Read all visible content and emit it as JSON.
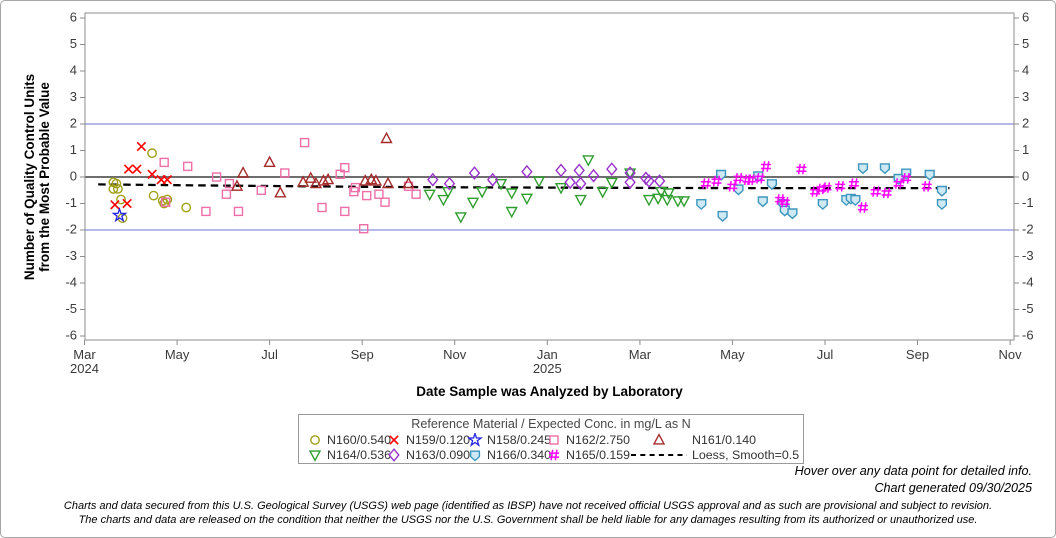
{
  "page": {
    "hover_note": "Hover over any data point for detailed info.",
    "generated_note": "Chart generated 09/30/2025",
    "disclaimer_line1": "Charts and data secured from this U.S. Geological Survey (USGS) web page (identified as IBSP) have not received official USGS approval and as such are provisional and subject to revision.",
    "disclaimer_line2": "The charts and data are released on the condition that neither the USGS nor the U.S. Government shall be held liable for any damages resulting from its authorized or unauthorized use."
  },
  "chart_data": {
    "type": "scatter",
    "xlabel": "Date Sample was Analyzed by Laboratory",
    "ylabel_line1": "Number of Quality Control Units",
    "ylabel_line2": "from the Most Probable Value",
    "legend_title": "Reference Material / Expected Conc. in mg/L as N",
    "ylim": [
      -6,
      6
    ],
    "yticks": [
      6,
      5,
      4,
      3,
      2,
      1,
      0,
      -1,
      -2,
      -3,
      -4,
      -5,
      -6
    ],
    "xticks": [
      {
        "label": "Mar",
        "year": "2024"
      },
      {
        "label": "May"
      },
      {
        "label": "Jul"
      },
      {
        "label": "Sep"
      },
      {
        "label": "Nov"
      },
      {
        "label": "Jan",
        "year": "2025"
      },
      {
        "label": "Mar"
      },
      {
        "label": "May"
      },
      {
        "label": "Jul"
      },
      {
        "label": "Sep"
      },
      {
        "label": "Nov"
      }
    ],
    "x_range_months": [
      "2024-03",
      "2025-11"
    ],
    "grid": false,
    "legend_position": "bottom",
    "reference_lines": [
      {
        "value": 2,
        "color": "#8a8edb",
        "width": 1.2
      },
      {
        "value": 0,
        "color": "#6e6e6e",
        "width": 2
      },
      {
        "value": -2,
        "color": "#8a8edb",
        "width": 1.2
      }
    ],
    "series": [
      {
        "id": "N160",
        "label": "N160/0.540",
        "marker": "circle",
        "color": "#a0a018",
        "points": [
          [
            "2024-04-15",
            0.9
          ],
          [
            "2024-03-20",
            -0.2
          ],
          [
            "2024-03-22",
            -0.25
          ],
          [
            "2024-03-20",
            -0.45
          ],
          [
            "2024-03-23",
            -0.45
          ],
          [
            "2024-03-25",
            -0.85
          ],
          [
            "2024-04-16",
            -0.7
          ],
          [
            "2024-04-22",
            -0.9
          ],
          [
            "2024-04-25",
            -0.85
          ],
          [
            "2024-04-23",
            -1.0
          ],
          [
            "2024-05-07",
            -1.15
          ],
          [
            "2024-03-26",
            -1.55
          ]
        ]
      },
      {
        "id": "N159",
        "label": "N159/0.120",
        "marker": "x",
        "color": "#ff0000",
        "points": [
          [
            "2024-04-08",
            1.15
          ],
          [
            "2024-03-30",
            0.3
          ],
          [
            "2024-04-05",
            0.3
          ],
          [
            "2024-04-15",
            0.1
          ],
          [
            "2024-04-21",
            -0.1
          ],
          [
            "2024-04-25",
            -0.1
          ],
          [
            "2024-03-21",
            -1.05
          ],
          [
            "2024-03-29",
            -1.0
          ]
        ]
      },
      {
        "id": "N158",
        "label": "N158/0.245",
        "marker": "star",
        "color": "#2323e8",
        "points": [
          [
            "2024-03-24",
            -1.45
          ]
        ]
      },
      {
        "id": "N162",
        "label": "N162/2.750",
        "marker": "square",
        "color": "#ee6ea8",
        "points": [
          [
            "2024-04-23",
            0.55
          ],
          [
            "2024-05-08",
            0.4
          ],
          [
            "2024-04-24",
            -0.95
          ],
          [
            "2024-05-20",
            -1.3
          ],
          [
            "2024-05-27",
            0.0
          ],
          [
            "2024-06-05",
            -0.25
          ],
          [
            "2024-06-03",
            -0.65
          ],
          [
            "2024-06-11",
            -1.3
          ],
          [
            "2024-06-26",
            -0.5
          ],
          [
            "2024-07-11",
            0.15
          ],
          [
            "2024-07-24",
            1.3
          ],
          [
            "2024-08-17",
            0.1
          ],
          [
            "2024-08-20",
            0.35
          ],
          [
            "2024-08-05",
            -1.15
          ],
          [
            "2024-08-20",
            -1.3
          ],
          [
            "2024-08-26",
            -0.55
          ],
          [
            "2024-08-27",
            -0.4
          ],
          [
            "2024-09-04",
            -0.7
          ],
          [
            "2024-09-12",
            -0.65
          ],
          [
            "2024-09-16",
            -0.95
          ],
          [
            "2024-09-02",
            -1.95
          ],
          [
            "2024-10-01",
            -0.35
          ],
          [
            "2024-10-06",
            -0.65
          ]
        ]
      },
      {
        "id": "N161",
        "label": "N161/0.140",
        "marker": "triangle-up",
        "color": "#a52a2a",
        "points": [
          [
            "2024-06-10",
            -0.35
          ],
          [
            "2024-06-14",
            0.15
          ],
          [
            "2024-07-01",
            0.55
          ],
          [
            "2024-07-08",
            -0.6
          ],
          [
            "2024-07-23",
            -0.2
          ],
          [
            "2024-07-28",
            -0.05
          ],
          [
            "2024-08-01",
            -0.25
          ],
          [
            "2024-08-06",
            -0.15
          ],
          [
            "2024-08-09",
            -0.1
          ],
          [
            "2024-09-03",
            -0.15
          ],
          [
            "2024-09-07",
            -0.1
          ],
          [
            "2024-09-10",
            -0.15
          ],
          [
            "2024-09-17",
            1.45
          ],
          [
            "2024-09-18",
            -0.25
          ],
          [
            "2024-10-01",
            -0.25
          ]
        ]
      },
      {
        "id": "N164",
        "label": "N164/0.536",
        "marker": "triangle-down",
        "color": "#2f9e2f",
        "points": [
          [
            "2024-10-15",
            -0.65
          ],
          [
            "2024-10-24",
            -0.85
          ],
          [
            "2024-10-27",
            -0.55
          ],
          [
            "2024-11-05",
            -1.5
          ],
          [
            "2024-11-13",
            -0.95
          ],
          [
            "2024-11-19",
            -0.55
          ],
          [
            "2024-12-01",
            -0.25
          ],
          [
            "2024-12-08",
            -0.6
          ],
          [
            "2024-12-08",
            -1.3
          ],
          [
            "2024-12-18",
            -0.8
          ],
          [
            "2024-12-26",
            -0.15
          ],
          [
            "2025-01-10",
            -0.4
          ],
          [
            "2025-01-23",
            -0.85
          ],
          [
            "2025-01-28",
            0.65
          ],
          [
            "2025-02-07",
            -0.55
          ],
          [
            "2025-02-13",
            -0.2
          ],
          [
            "2025-02-25",
            0.15
          ],
          [
            "2025-03-07",
            -0.85
          ],
          [
            "2025-03-13",
            -0.8
          ],
          [
            "2025-03-15",
            -0.55
          ],
          [
            "2025-03-19",
            -0.85
          ],
          [
            "2025-03-20",
            -0.6
          ],
          [
            "2025-03-26",
            -0.9
          ],
          [
            "2025-03-30",
            -0.9
          ]
        ]
      },
      {
        "id": "N163",
        "label": "N163/0.090",
        "marker": "diamond",
        "color": "#9932cc",
        "points": [
          [
            "2024-10-17",
            -0.1
          ],
          [
            "2024-10-28",
            -0.25
          ],
          [
            "2024-11-14",
            0.15
          ],
          [
            "2024-11-26",
            -0.1
          ],
          [
            "2024-12-18",
            0.2
          ],
          [
            "2025-01-10",
            0.25
          ],
          [
            "2025-01-16",
            -0.2
          ],
          [
            "2025-01-22",
            0.25
          ],
          [
            "2025-01-23",
            -0.25
          ],
          [
            "2025-02-01",
            0.05
          ],
          [
            "2025-02-13",
            0.3
          ],
          [
            "2025-02-25",
            0.15
          ],
          [
            "2025-02-25",
            -0.2
          ],
          [
            "2025-03-05",
            -0.05
          ],
          [
            "2025-03-07",
            -0.15
          ],
          [
            "2025-03-14",
            -0.15
          ]
        ]
      },
      {
        "id": "N166",
        "label": "N166/0.340",
        "marker": "shield",
        "color": "#3c96be",
        "fill": "#cfe9f4",
        "points": [
          [
            "2025-04-11",
            -1.0
          ],
          [
            "2025-04-24",
            0.1
          ],
          [
            "2025-04-25",
            -1.45
          ],
          [
            "2025-05-05",
            -0.45
          ],
          [
            "2025-05-18",
            0.05
          ],
          [
            "2025-05-21",
            -0.9
          ],
          [
            "2025-05-27",
            -0.25
          ],
          [
            "2025-06-04",
            -1.0
          ],
          [
            "2025-06-05",
            -1.25
          ],
          [
            "2025-06-10",
            -1.35
          ],
          [
            "2025-06-30",
            -1.0
          ],
          [
            "2025-07-15",
            -0.85
          ],
          [
            "2025-07-18",
            -0.8
          ],
          [
            "2025-07-21",
            -0.85
          ],
          [
            "2025-07-26",
            0.35
          ],
          [
            "2025-08-10",
            0.35
          ],
          [
            "2025-08-19",
            -0.05
          ],
          [
            "2025-08-24",
            0.15
          ],
          [
            "2025-09-09",
            0.1
          ],
          [
            "2025-09-17",
            -0.5
          ],
          [
            "2025-09-17",
            -1.0
          ]
        ]
      },
      {
        "id": "N165",
        "label": "N165/0.159",
        "marker": "hash",
        "color": "#ff00ff",
        "points": [
          [
            "2025-04-14",
            -0.25
          ],
          [
            "2025-04-21",
            -0.15
          ],
          [
            "2025-05-01",
            -0.35
          ],
          [
            "2025-05-05",
            -0.05
          ],
          [
            "2025-05-11",
            -0.1
          ],
          [
            "2025-05-13",
            -0.1
          ],
          [
            "2025-05-19",
            -0.05
          ],
          [
            "2025-05-23",
            0.4
          ],
          [
            "2025-06-02",
            -0.85
          ],
          [
            "2025-06-05",
            -0.95
          ],
          [
            "2025-06-16",
            0.3
          ],
          [
            "2025-06-25",
            -0.55
          ],
          [
            "2025-06-29",
            -0.45
          ],
          [
            "2025-07-02",
            -0.4
          ],
          [
            "2025-07-11",
            -0.35
          ],
          [
            "2025-07-20",
            -0.25
          ],
          [
            "2025-07-26",
            -1.15
          ],
          [
            "2025-08-04",
            -0.55
          ],
          [
            "2025-08-11",
            -0.6
          ],
          [
            "2025-08-19",
            -0.25
          ],
          [
            "2025-08-24",
            -0.05
          ],
          [
            "2025-09-07",
            -0.35
          ]
        ]
      },
      {
        "id": "loess",
        "label": "Loess, Smooth=0.5",
        "marker": "dash",
        "color": "#000000",
        "line": [
          [
            "2024-03-10",
            -0.28
          ],
          [
            "2024-05-01",
            -0.31
          ],
          [
            "2024-07-01",
            -0.34
          ],
          [
            "2024-09-01",
            -0.37
          ],
          [
            "2024-11-01",
            -0.39
          ],
          [
            "2025-01-01",
            -0.4
          ],
          [
            "2025-03-01",
            -0.41
          ],
          [
            "2025-05-01",
            -0.42
          ],
          [
            "2025-07-01",
            -0.42
          ],
          [
            "2025-09-22",
            -0.42
          ]
        ]
      }
    ]
  }
}
